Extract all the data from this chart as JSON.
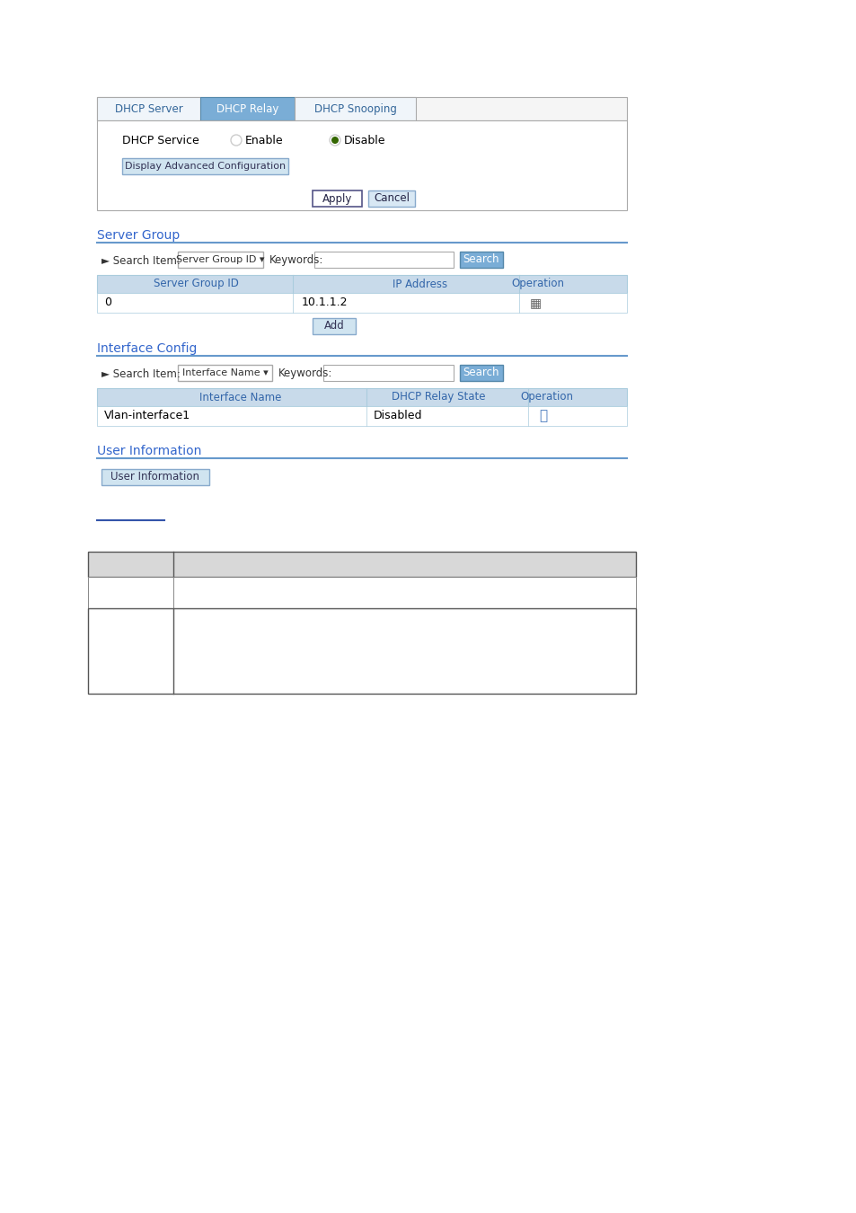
{
  "bg_color": "#ffffff",
  "tab_inactive_bg": "#f0f0f0",
  "tab_active_bg": "#7aadd6",
  "tab_border": "#aaaaaa",
  "tab_text_color_inactive": "#336699",
  "tab_text_color_active": "#ffffff",
  "tabs": [
    "DHCP Server",
    "DHCP Relay",
    "DHCP Snooping"
  ],
  "active_tab": 1,
  "section_title_color": "#3366cc",
  "section_line_color": "#6699cc",
  "header_bg": "#c8daea",
  "header_text_color": "#3366aa",
  "row_bg": "#ffffff",
  "row_border": "#aaccdd",
  "button_bg": "#c5d9e8",
  "button_border": "#7aadd6",
  "apply_button_border": "#336699",
  "input_border": "#aaaacc",
  "radio_enable_checked": false,
  "radio_disable_checked": true,
  "radio_color_checked": "#336600",
  "radio_color_unchecked": "#cccccc",
  "table_bottom_border": "#333333",
  "link_color": "#3355aa"
}
